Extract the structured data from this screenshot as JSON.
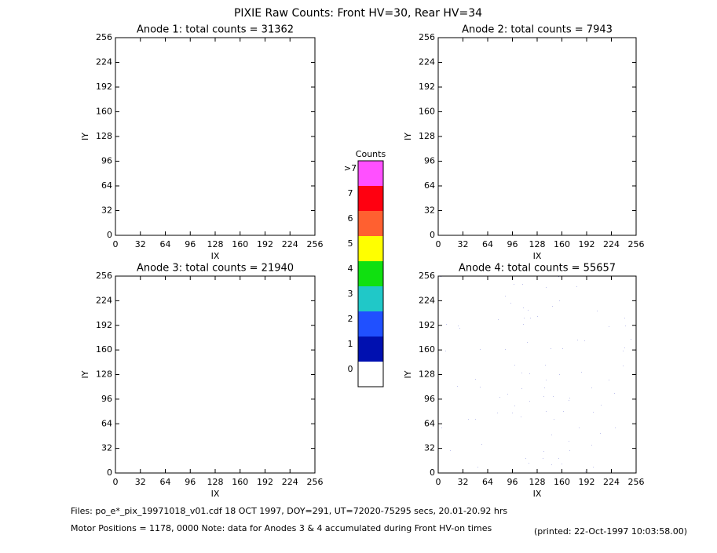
{
  "title": "PIXIE Raw Counts:  Front HV=30, Rear HV=34",
  "chart_data": [
    {
      "type": "heatmap",
      "title": "Anode 1: total counts = 31362",
      "xlabel": "IX",
      "ylabel": "IY",
      "xlim": [
        0,
        256
      ],
      "xticks": [
        0,
        32,
        64,
        96,
        128,
        160,
        192,
        224,
        256
      ],
      "ylim": [
        0,
        256
      ],
      "yticks": [
        0,
        32,
        64,
        96,
        128,
        160,
        192,
        224,
        256
      ]
    },
    {
      "type": "heatmap",
      "title": "Anode 2: total counts = 7943",
      "xlabel": "IX",
      "ylabel": "IY",
      "xlim": [
        0,
        256
      ],
      "xticks": [
        0,
        32,
        64,
        96,
        128,
        160,
        192,
        224,
        256
      ],
      "ylim": [
        0,
        256
      ],
      "yticks": [
        0,
        32,
        64,
        96,
        128,
        160,
        192,
        224,
        256
      ]
    },
    {
      "type": "heatmap",
      "title": "Anode 3: total counts = 21940",
      "xlabel": "IX",
      "ylabel": "IY",
      "xlim": [
        0,
        256
      ],
      "xticks": [
        0,
        32,
        64,
        96,
        128,
        160,
        192,
        224,
        256
      ],
      "ylim": [
        0,
        256
      ],
      "yticks": [
        0,
        32,
        64,
        96,
        128,
        160,
        192,
        224,
        256
      ]
    },
    {
      "type": "heatmap",
      "title": "Anode 4: total counts = 55657",
      "xlabel": "IX",
      "ylabel": "IY",
      "xlim": [
        0,
        256
      ],
      "xticks": [
        0,
        32,
        64,
        96,
        128,
        160,
        192,
        224,
        256
      ],
      "ylim": [
        0,
        256
      ],
      "yticks": [
        0,
        32,
        64,
        96,
        128,
        160,
        192,
        224,
        256
      ]
    }
  ],
  "colorbar": {
    "title": "Counts",
    "ticks": [
      0,
      1,
      2,
      3,
      4,
      5,
      6,
      7,
      {
        "value": 8,
        "label": ">7"
      }
    ],
    "colors": [
      "#ffffff",
      "#0010b0",
      "#2050ff",
      "#20c8c8",
      "#10e010",
      "#ffff00",
      "#ff6030",
      "#ff0010",
      "#ff50ff"
    ]
  },
  "footer": {
    "files": "Files: po_e*_pix_19971018_v01.cdf    18 OCT 1997, DOY=291, UT=72020-75295 secs, 20.01-20.92 hrs",
    "motor": "Motor Positions = 1178, 0000   Note: data for Anodes 3 & 4 accumulated during Front HV-on times",
    "printed": "(printed: 22-Oct-1997 10:03:58.00)"
  }
}
